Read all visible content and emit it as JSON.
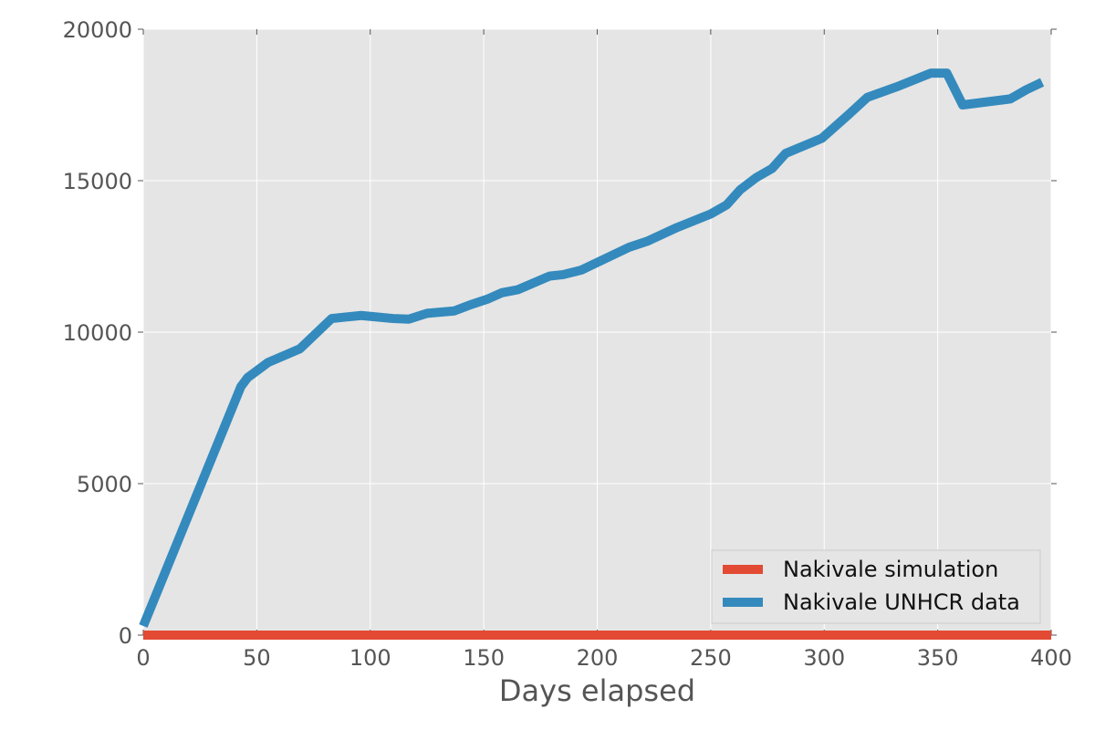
{
  "chart_data": {
    "type": "line",
    "title": "",
    "xlabel": "Days elapsed",
    "ylabel": "",
    "xlim": [
      0,
      400
    ],
    "ylim": [
      0,
      20000
    ],
    "xticks": [
      0,
      50,
      100,
      150,
      200,
      250,
      300,
      350,
      400
    ],
    "yticks": [
      0,
      5000,
      10000,
      15000,
      20000
    ],
    "grid": true,
    "legend_position": "bottom-right",
    "series": [
      {
        "name": "Nakivale simulation",
        "color": "#e24a33",
        "x": [
          0,
          400
        ],
        "y": [
          0,
          0
        ]
      },
      {
        "name": "Nakivale UNHCR data",
        "color": "#348abd",
        "x": [
          0,
          43,
          46,
          55,
          69,
          83,
          96,
          110,
          117,
          125,
          137,
          144,
          152,
          158,
          165,
          179,
          185,
          193,
          200,
          214,
          222,
          235,
          250,
          257,
          263,
          270,
          277,
          283,
          299,
          311,
          319,
          332,
          347,
          354,
          361,
          382,
          389,
          396
        ],
        "y": [
          300,
          8200,
          8500,
          9000,
          9450,
          10450,
          10550,
          10450,
          10430,
          10620,
          10700,
          10900,
          11100,
          11300,
          11400,
          11850,
          11900,
          12050,
          12300,
          12800,
          13000,
          13450,
          13900,
          14200,
          14700,
          15100,
          15400,
          15900,
          16400,
          17200,
          17750,
          18100,
          18550,
          18550,
          17500,
          17700,
          18000,
          18250
        ]
      }
    ]
  }
}
